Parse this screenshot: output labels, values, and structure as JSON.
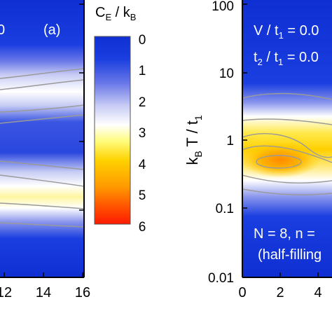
{
  "colors": {
    "colormap": [
      "#ff1a00",
      "#ff7a00",
      "#ffd200",
      "#fffb7a",
      "#ffffff",
      "#c8ccf4",
      "#6a78e8",
      "#1a3ee0",
      "#0f2fd2"
    ],
    "contour": "#9a9a9a",
    "axis": "#000000",
    "annotation_text": "#ffffff"
  },
  "chart_data": [
    {
      "type": "heatmap",
      "panel_label": "(a)",
      "x_tick_labels": [
        "12",
        "14",
        "16"
      ],
      "xlim": [
        11.3,
        16
      ],
      "y_scale": "log",
      "ylim": [
        0.01,
        100
      ],
      "top_left_text": "0",
      "peak_regions": [
        {
          "x": [
            11.3,
            16
          ],
          "y_center": 2.6,
          "value": 3.2
        },
        {
          "x": [
            11.3,
            16
          ],
          "y_center": 0.12,
          "value": 3.5
        }
      ]
    },
    {
      "type": "heatmap",
      "ylabel_main": "k",
      "ylabel_sub1": "B",
      "ylabel_mid": " T / t",
      "ylabel_sub2": "1",
      "y_scale": "log",
      "ylim": [
        0.01,
        100
      ],
      "y_tick_labels": [
        "0.01",
        "0.1",
        "1",
        "10",
        "100"
      ],
      "x_tick_labels": [
        "0",
        "2",
        "4"
      ],
      "xlim": [
        0,
        5.5
      ],
      "annotations": {
        "line1_main": "V / t",
        "line1_sub": "1",
        "line1_rest": " = 0.0",
        "line2_a": "t",
        "line2_a_sub": "2",
        "line2_mid": " / t",
        "line2_b_sub": "1",
        "line2_rest": " = 0.0",
        "line3": "N = 8, n =",
        "line4": "(half-filling"
      },
      "peak_regions": [
        {
          "x": [
            0,
            5.5
          ],
          "y_center": 0.5,
          "value": 5.0
        }
      ]
    }
  ],
  "colorbar": {
    "title_c": "C",
    "title_sub_e": "E",
    "title_mid": " / k",
    "title_sub_b": "B",
    "tick_labels": [
      "0",
      "1",
      "2",
      "3",
      "4",
      "5",
      "6"
    ],
    "range": [
      0,
      6
    ]
  }
}
